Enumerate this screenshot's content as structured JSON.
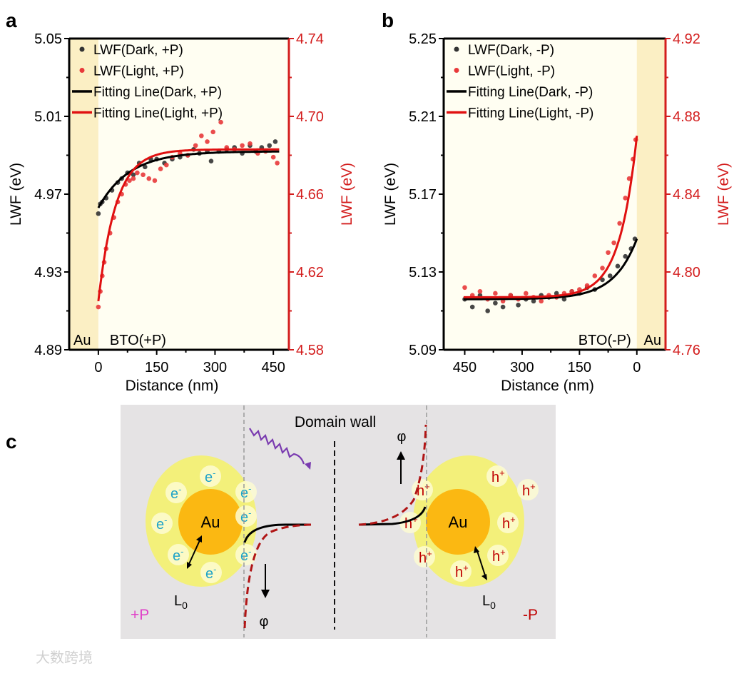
{
  "panel_labels": {
    "a": "a",
    "b": "b",
    "c": "c"
  },
  "colors": {
    "dark": "#333333",
    "light": "#e8393a",
    "dark_fit": "#000000",
    "light_fit": "#e01010",
    "right_axis": "#d31d1d",
    "au_region": "#fbefc4",
    "bto_region": "#fffef2"
  },
  "chart_data": [
    {
      "type": "scatter",
      "panel": "a",
      "xlabel": "Distance (nm)",
      "ylabel_left": "LWF (eV)",
      "ylabel_right": "LWF (eV)",
      "xlim": [
        -75,
        490
      ],
      "x_reversed": false,
      "xticks": [
        0,
        150,
        300,
        450
      ],
      "ylim_left": [
        4.89,
        5.05
      ],
      "yticks_left": [
        "4.89",
        "4.93",
        "4.97",
        "5.01",
        "5.05"
      ],
      "ylim_right": [
        4.58,
        4.74
      ],
      "yticks_right": [
        "4.58",
        "4.62",
        "4.66",
        "4.70",
        "4.74"
      ],
      "region_labels": {
        "au": "Au",
        "bto": "BTO(+P)"
      },
      "au_region": [
        -75,
        0
      ],
      "legend": [
        "LWF(Dark, +P)",
        "LWF(Light, +P)",
        "Fitting Line(Dark, +P)",
        "Fitting Line(Light, +P)"
      ],
      "legend_position": "top-left",
      "series": [
        {
          "name": "LWF(Dark, +P)",
          "axis": "left",
          "points": [
            [
              0,
              4.96
            ],
            [
              5,
              4.965
            ],
            [
              10,
              4.966
            ],
            [
              20,
              4.968
            ],
            [
              35,
              4.972
            ],
            [
              50,
              4.976
            ],
            [
              60,
              4.978
            ],
            [
              75,
              4.981
            ],
            [
              90,
              4.98
            ],
            [
              105,
              4.986
            ],
            [
              120,
              4.984
            ],
            [
              135,
              4.988
            ],
            [
              150,
              4.988
            ],
            [
              170,
              4.986
            ],
            [
              190,
              4.988
            ],
            [
              210,
              4.989
            ],
            [
              230,
              4.99
            ],
            [
              245,
              4.993
            ],
            [
              260,
              4.991
            ],
            [
              280,
              4.992
            ],
            [
              290,
              4.987
            ],
            [
              310,
              4.992
            ],
            [
              330,
              4.993
            ],
            [
              350,
              4.994
            ],
            [
              370,
              4.991
            ],
            [
              390,
              4.995
            ],
            [
              405,
              4.992
            ],
            [
              420,
              4.994
            ],
            [
              440,
              4.995
            ],
            [
              455,
              4.997
            ]
          ]
        },
        {
          "name": "LWF(Light, +P)",
          "axis": "right",
          "points": [
            [
              0,
              4.602
            ],
            [
              5,
              4.61
            ],
            [
              10,
              4.618
            ],
            [
              15,
              4.625
            ],
            [
              20,
              4.632
            ],
            [
              30,
              4.64
            ],
            [
              40,
              4.648
            ],
            [
              50,
              4.656
            ],
            [
              60,
              4.66
            ],
            [
              70,
              4.665
            ],
            [
              80,
              4.667
            ],
            [
              90,
              4.668
            ],
            [
              100,
              4.671
            ],
            [
              115,
              4.67
            ],
            [
              130,
              4.668
            ],
            [
              145,
              4.667
            ],
            [
              160,
              4.673
            ],
            [
              175,
              4.675
            ],
            [
              190,
              4.679
            ],
            [
              210,
              4.681
            ],
            [
              230,
              4.68
            ],
            [
              250,
              4.685
            ],
            [
              265,
              4.69
            ],
            [
              280,
              4.687
            ],
            [
              295,
              4.692
            ],
            [
              315,
              4.697
            ],
            [
              330,
              4.684
            ],
            [
              350,
              4.683
            ],
            [
              370,
              4.685
            ],
            [
              390,
              4.686
            ],
            [
              410,
              4.681
            ],
            [
              430,
              4.682
            ],
            [
              450,
              4.679
            ],
            [
              460,
              4.676
            ]
          ]
        },
        {
          "name": "Fitting Line(Dark, +P)",
          "axis": "left",
          "fit": {
            "model": "y0 + A*exp(-x/t)",
            "y0": 4.992,
            "A": -0.029,
            "t": 80,
            "x_range": [
              0,
              465
            ]
          }
        },
        {
          "name": "Fitting Line(Light, +P)",
          "axis": "right",
          "fit": {
            "model": "y0 + A*exp(-x/t)",
            "y0": 4.683,
            "A": -0.078,
            "t": 45,
            "x_range": [
              0,
              465
            ]
          }
        }
      ]
    },
    {
      "type": "scatter",
      "panel": "b",
      "xlabel": "Distance (nm)",
      "ylabel_left": "LWF (eV)",
      "ylabel_right": "LWF (eV)",
      "xlim": [
        505,
        -75
      ],
      "x_reversed": true,
      "xticks": [
        450,
        300,
        150,
        0
      ],
      "ylim_left": [
        5.09,
        5.25
      ],
      "yticks_left": [
        "5.09",
        "5.13",
        "5.17",
        "5.21",
        "5.25"
      ],
      "ylim_right": [
        4.76,
        4.92
      ],
      "yticks_right": [
        "4.76",
        "4.80",
        "4.84",
        "4.88",
        "4.92"
      ],
      "region_labels": {
        "au": "Au",
        "bto": "BTO(-P)"
      },
      "au_region": [
        0,
        -75
      ],
      "legend": [
        "LWF(Dark, -P)",
        "LWF(Light, -P)",
        "Fitting Line(Dark, -P)",
        "Fitting Line(Light, -P)"
      ],
      "legend_position": "top-left",
      "series": [
        {
          "name": "LWF(Dark, -P)",
          "axis": "left",
          "points": [
            [
              450,
              5.116
            ],
            [
              430,
              5.112
            ],
            [
              410,
              5.118
            ],
            [
              390,
              5.11
            ],
            [
              370,
              5.114
            ],
            [
              350,
              5.112
            ],
            [
              330,
              5.118
            ],
            [
              310,
              5.113
            ],
            [
              290,
              5.116
            ],
            [
              270,
              5.115
            ],
            [
              250,
              5.118
            ],
            [
              230,
              5.117
            ],
            [
              210,
              5.119
            ],
            [
              190,
              5.116
            ],
            [
              170,
              5.12
            ],
            [
              150,
              5.119
            ],
            [
              130,
              5.122
            ],
            [
              110,
              5.121
            ],
            [
              90,
              5.126
            ],
            [
              70,
              5.128
            ],
            [
              50,
              5.133
            ],
            [
              30,
              5.138
            ],
            [
              15,
              5.142
            ],
            [
              5,
              5.147
            ]
          ]
        },
        {
          "name": "LWF(Light, -P)",
          "axis": "right",
          "points": [
            [
              450,
              4.792
            ],
            [
              430,
              4.788
            ],
            [
              410,
              4.79
            ],
            [
              390,
              4.786
            ],
            [
              370,
              4.789
            ],
            [
              350,
              4.785
            ],
            [
              330,
              4.788
            ],
            [
              310,
              4.786
            ],
            [
              290,
              4.789
            ],
            [
              270,
              4.787
            ],
            [
              250,
              4.785
            ],
            [
              230,
              4.788
            ],
            [
              210,
              4.787
            ],
            [
              190,
              4.789
            ],
            [
              170,
              4.79
            ],
            [
              150,
              4.791
            ],
            [
              130,
              4.793
            ],
            [
              110,
              4.798
            ],
            [
              90,
              4.802
            ],
            [
              75,
              4.81
            ],
            [
              60,
              4.815
            ],
            [
              45,
              4.825
            ],
            [
              30,
              4.838
            ],
            [
              20,
              4.848
            ],
            [
              10,
              4.858
            ],
            [
              3,
              4.868
            ]
          ]
        },
        {
          "name": "Fitting Line(Dark, -P)",
          "axis": "left",
          "fit": {
            "model": "y0 + A*exp(-x/t)",
            "y0": 5.116,
            "A": 0.031,
            "t": 60,
            "x_range": [
              0,
              455
            ]
          }
        },
        {
          "name": "Fitting Line(Light, -P)",
          "axis": "right",
          "fit": {
            "model": "y0 + A*exp(-x/t)",
            "y0": 4.787,
            "A": 0.083,
            "t": 45,
            "x_range": [
              0,
              455
            ]
          }
        }
      ]
    }
  ],
  "diagram": {
    "domain_wall": "Domain wall",
    "au": "Au",
    "electron": "e",
    "electron_sup": "-",
    "hole": "h",
    "hole_sup": "+",
    "phi": "φ",
    "l0": "L",
    "l0_sub": "0",
    "plus_p": "+P",
    "minus_p": "-P",
    "plus_p_color": "#e040c8",
    "minus_p_color": "#c00000",
    "electron_color": "#1fa3c8",
    "hole_color": "#c00000"
  },
  "watermark": "大数跨境"
}
